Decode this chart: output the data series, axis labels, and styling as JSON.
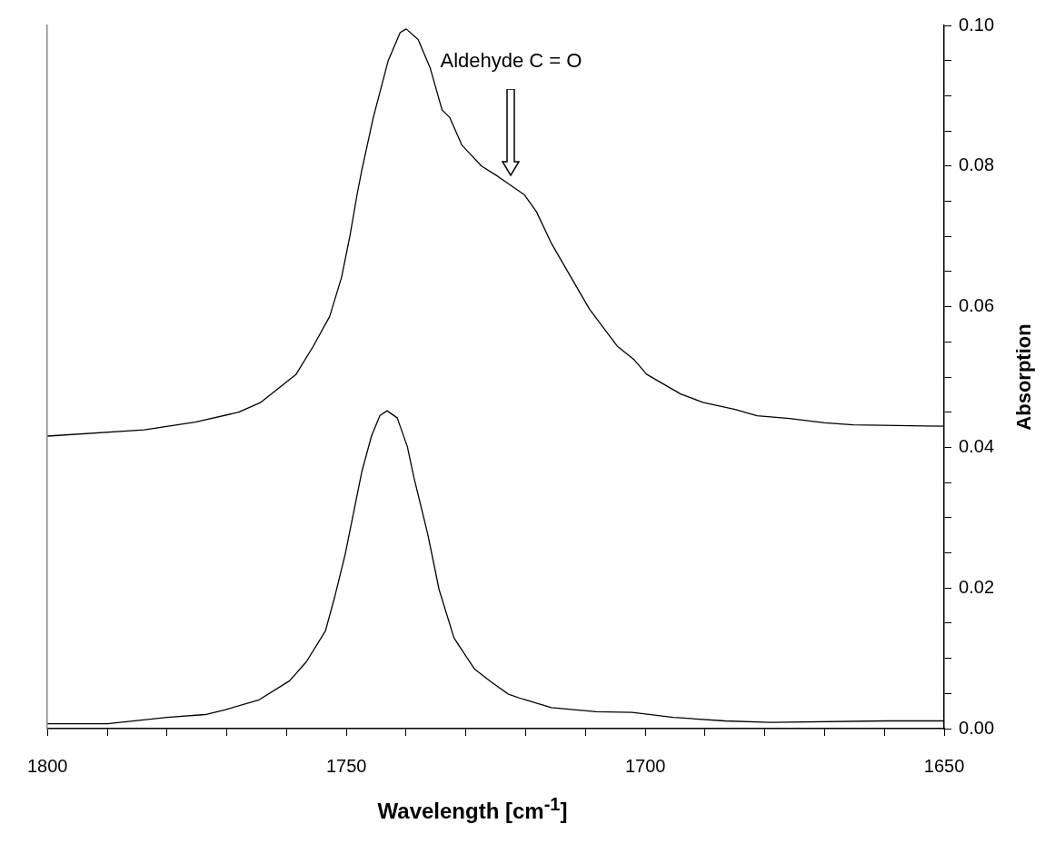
{
  "chart_data": {
    "type": "line",
    "xlabel": "Wavelength [cm$^{-1}$]",
    "ylabel": "Absorption",
    "annotations": [
      "Aldehyde C = O"
    ],
    "xlim": [
      1800,
      1650
    ],
    "xticks": [
      1800,
      {
        "value": 1790,
        "label": null
      },
      {
        "value": 1780,
        "label": null
      },
      {
        "value": 1770,
        "label": null
      },
      {
        "value": 1760,
        "label": null
      },
      1750,
      {
        "value": 1740,
        "label": null
      },
      {
        "value": 1730,
        "label": null
      },
      {
        "value": 1720,
        "label": null
      },
      {
        "value": 1710,
        "label": null
      },
      1700,
      {
        "value": 1690,
        "label": null
      },
      {
        "value": 1680,
        "label": null
      },
      {
        "value": 1670,
        "label": null
      },
      {
        "value": 1660,
        "label": null
      },
      1650
    ],
    "ylim": [
      0,
      0.1
    ],
    "yticks": [
      {
        "value": 0,
        "label": "0.00"
      },
      {
        "value": 0.005,
        "label": null
      },
      {
        "value": 0.01,
        "label": null
      },
      {
        "value": 0.015,
        "label": null
      },
      {
        "value": 0.02,
        "label": "0.02"
      },
      {
        "value": 0.025,
        "label": null
      },
      {
        "value": 0.03,
        "label": null
      },
      {
        "value": 0.035,
        "label": null
      },
      {
        "value": 0.04,
        "label": "0.04"
      },
      {
        "value": 0.045,
        "label": null
      },
      {
        "value": 0.05,
        "label": null
      },
      {
        "value": 0.055,
        "label": null
      },
      {
        "value": 0.06,
        "label": "0.06"
      },
      {
        "value": 0.065,
        "label": null
      },
      {
        "value": 0.07,
        "label": null
      },
      {
        "value": 0.075,
        "label": null
      },
      {
        "value": 0.08,
        "label": "0.08"
      },
      {
        "value": 0.085,
        "label": null
      },
      {
        "value": 0.09,
        "label": null
      },
      {
        "value": 0.095,
        "label": null
      },
      {
        "value": 0.1,
        "label": "0.10"
      }
    ],
    "marker": "none",
    "line_style": "solid",
    "series": [
      {
        "color": "#000000",
        "x": [
          1800,
          1783.8,
          1775.3,
          1768,
          1764.3,
          1758.4,
          1755.6,
          1752.8,
          1750.8,
          1749.4,
          1748.2,
          1747.4,
          1746.5,
          1745.5,
          1743,
          1741,
          1740,
          1738,
          1736,
          1734,
          1732.7,
          1730.7,
          1727.4,
          1724.6,
          1720.2,
          1718.2,
          1715.7,
          1712.5,
          1709.3,
          1704.7,
          1701.9,
          1699.8,
          1694.1,
          1690.4,
          1685,
          1681.3,
          1675.9,
          1670,
          1665.2,
          1650
        ],
        "values": [
          0.0416,
          0.0425,
          0.0436,
          0.045,
          0.0464,
          0.0504,
          0.0543,
          0.0586,
          0.0642,
          0.0701,
          0.076,
          0.0795,
          0.083,
          0.0869,
          0.095,
          0.099,
          0.0995,
          0.098,
          0.094,
          0.088,
          0.0869,
          0.083,
          0.08,
          0.0785,
          0.0759,
          0.0735,
          0.069,
          0.0643,
          0.0596,
          0.0544,
          0.0525,
          0.0504,
          0.0476,
          0.0464,
          0.0454,
          0.0445,
          0.0441,
          0.0435,
          0.0432,
          0.043
        ]
      },
      {
        "color": "#000000",
        "x": [
          1800,
          1790,
          1780,
          1773.6,
          1770.2,
          1764.6,
          1759.5,
          1756.7,
          1753.5,
          1751.9,
          1750.2,
          1748.8,
          1747.4,
          1745.8,
          1744.4,
          1743.2,
          1741.5,
          1739.8,
          1738.7,
          1736.4,
          1734.5,
          1732,
          1728.6,
          1725.7,
          1722.9,
          1720.5,
          1715.7,
          1708.2,
          1702.2,
          1695.3,
          1686.7,
          1679.1,
          1659.8,
          1650
        ],
        "values": [
          0.0007,
          0.0007,
          0.0016,
          0.002,
          0.0027,
          0.0041,
          0.0068,
          0.0095,
          0.0139,
          0.0189,
          0.0248,
          0.0307,
          0.0366,
          0.0416,
          0.0445,
          0.0452,
          0.0442,
          0.0401,
          0.0357,
          0.0277,
          0.0198,
          0.0129,
          0.0085,
          0.0066,
          0.0049,
          0.0042,
          0.003,
          0.0024,
          0.0023,
          0.0016,
          0.0011,
          0.0009,
          0.0011,
          0.0011
        ]
      }
    ]
  }
}
